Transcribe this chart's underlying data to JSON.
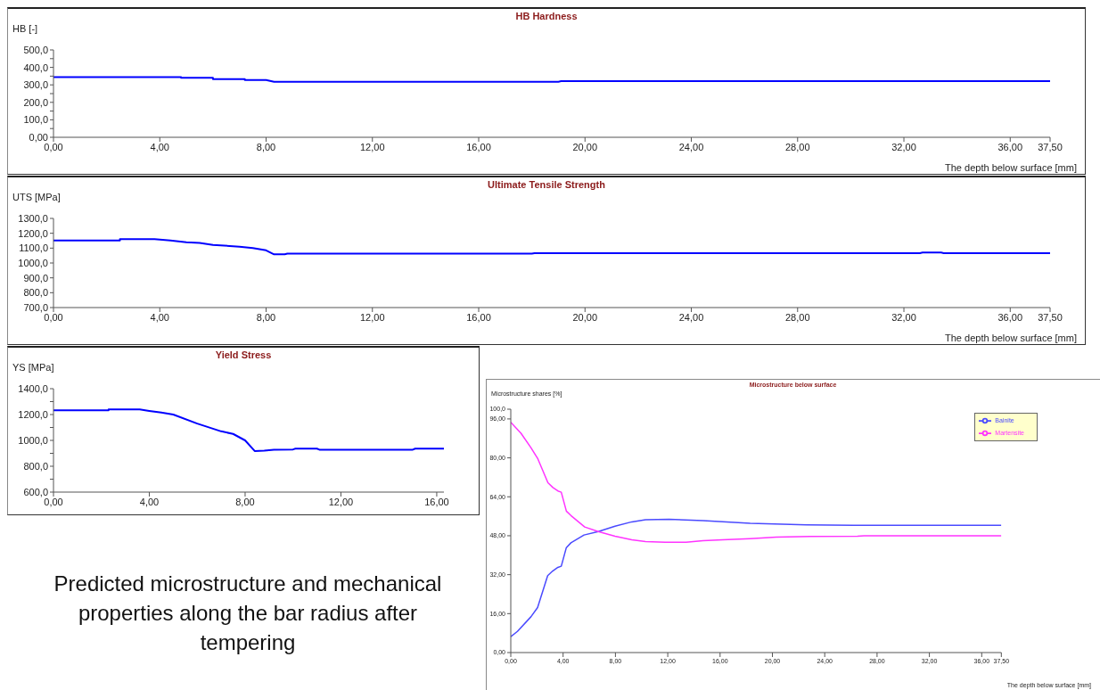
{
  "chart_data": [
    {
      "type": "line",
      "title": "HB Hardness",
      "ylabel": "HB [-]",
      "xlabel": "The depth below surface [mm]",
      "color": "#0000ff",
      "legend": false,
      "grid": false,
      "marker": "none",
      "line_style": "solid",
      "x": [
        0,
        4.8,
        4.8,
        6.0,
        6.0,
        7.2,
        7.2,
        8.0,
        8.3,
        19.0,
        19.1,
        37.5
      ],
      "values": [
        345,
        345,
        340,
        340,
        333,
        333,
        328,
        328,
        318,
        318,
        321,
        321
      ],
      "xlim": [
        0,
        37.5
      ],
      "xticks": [
        {
          "value": 0,
          "label": "0,00"
        },
        {
          "value": 4,
          "label": "4,00"
        },
        {
          "value": 8,
          "label": "8,00"
        },
        {
          "value": 12,
          "label": "12,00"
        },
        {
          "value": 16,
          "label": "16,00"
        },
        {
          "value": 20,
          "label": "20,00"
        },
        {
          "value": 24,
          "label": "24,00"
        },
        {
          "value": 28,
          "label": "28,00"
        },
        {
          "value": 32,
          "label": "32,00"
        },
        {
          "value": 36,
          "label": "36,00"
        },
        {
          "value": 37.5,
          "label": "37,50"
        }
      ],
      "ylim": [
        0,
        500
      ],
      "yticks": [
        {
          "value": 0,
          "label": "0,00"
        },
        {
          "value": 50,
          "label": null
        },
        {
          "value": 100,
          "label": "100,0"
        },
        {
          "value": 150,
          "label": null
        },
        {
          "value": 200,
          "label": "200,0"
        },
        {
          "value": 250,
          "label": null
        },
        {
          "value": 300,
          "label": "300,0"
        },
        {
          "value": 350,
          "label": null
        },
        {
          "value": 400,
          "label": "400,0"
        },
        {
          "value": 450,
          "label": null
        },
        {
          "value": 500,
          "label": "500,0"
        }
      ]
    },
    {
      "type": "line",
      "title": "Ultimate Tensile Strength",
      "ylabel": "UTS [MPa]",
      "xlabel": "The depth below surface [mm]",
      "color": "#0000ff",
      "legend": false,
      "grid": false,
      "marker": "none",
      "line_style": "solid",
      "x": [
        0,
        2.5,
        2.5,
        3.8,
        4.4,
        5.0,
        5.5,
        6.0,
        7.0,
        7.5,
        8.0,
        8.3,
        8.7,
        8.8,
        18.0,
        18.1,
        32.6,
        32.7,
        33.4,
        33.5,
        37.5
      ],
      "values": [
        1152,
        1152,
        1160,
        1160,
        1152,
        1140,
        1135,
        1122,
        1110,
        1100,
        1085,
        1058,
        1058,
        1063,
        1063,
        1066,
        1066,
        1070,
        1070,
        1066,
        1066
      ],
      "xlim": [
        0,
        37.5
      ],
      "xticks": [
        {
          "value": 0,
          "label": "0,00"
        },
        {
          "value": 4,
          "label": "4,00"
        },
        {
          "value": 8,
          "label": "8,00"
        },
        {
          "value": 12,
          "label": "12,00"
        },
        {
          "value": 16,
          "label": "16,00"
        },
        {
          "value": 20,
          "label": "20,00"
        },
        {
          "value": 24,
          "label": "24,00"
        },
        {
          "value": 28,
          "label": "28,00"
        },
        {
          "value": 32,
          "label": "32,00"
        },
        {
          "value": 36,
          "label": "36,00"
        },
        {
          "value": 37.5,
          "label": "37,50"
        }
      ],
      "ylim": [
        700,
        1300
      ],
      "yticks": [
        {
          "value": 700,
          "label": "700,0"
        },
        {
          "value": 800,
          "label": "800,0"
        },
        {
          "value": 900,
          "label": "900,0"
        },
        {
          "value": 1000,
          "label": "1000,0"
        },
        {
          "value": 1100,
          "label": "1100,0"
        },
        {
          "value": 1200,
          "label": "1200,0"
        },
        {
          "value": 1300,
          "label": "1300,0"
        }
      ]
    },
    {
      "type": "line",
      "title": "Yield Stress",
      "ylabel": "YS [MPa]",
      "color": "#0000ff",
      "legend": false,
      "grid": false,
      "marker": "none",
      "line_style": "solid",
      "annotations": [
        "Predicted microstructure and mechanical properties along the bar radius after tempering"
      ],
      "x": [
        0,
        2.3,
        2.3,
        3.6,
        4.0,
        4.5,
        5.0,
        6.0,
        7.0,
        7.5,
        8.0,
        8.4,
        8.8,
        9.2,
        10.0,
        10.1,
        11.0,
        11.1,
        15.0,
        15.1,
        16.3
      ],
      "values": [
        1232,
        1232,
        1240,
        1240,
        1228,
        1215,
        1200,
        1130,
        1070,
        1050,
        1000,
        918,
        920,
        928,
        930,
        936,
        936,
        928,
        928,
        936,
        936
      ],
      "xlim": [
        0,
        16.3
      ],
      "xticks": [
        {
          "value": 0,
          "label": "0,00"
        },
        {
          "value": 4,
          "label": "4,00"
        },
        {
          "value": 8,
          "label": "8,00"
        },
        {
          "value": 12,
          "label": "12,00"
        },
        {
          "value": 16,
          "label": "16,00"
        }
      ],
      "ylim": [
        600,
        1400
      ],
      "yticks": [
        {
          "value": 600,
          "label": "600,0"
        },
        {
          "value": 700,
          "label": null
        },
        {
          "value": 800,
          "label": "800,0"
        },
        {
          "value": 900,
          "label": null
        },
        {
          "value": 1000,
          "label": "1000,0"
        },
        {
          "value": 1100,
          "label": null
        },
        {
          "value": 1200,
          "label": "1200,0"
        },
        {
          "value": 1300,
          "label": null
        },
        {
          "value": 1400,
          "label": "1400,0"
        }
      ]
    },
    {
      "type": "line",
      "title": "Microstructure below surface",
      "ylabel": "Microstructure shares  [%]",
      "xlabel": "The depth below surface [mm]",
      "legend": "top right",
      "grid": false,
      "marker": "none",
      "line_style": "solid",
      "series": [
        {
          "name": "Bainite",
          "color": "#4a4aff",
          "x": [
            0,
            0.51,
            1.54,
            2.05,
            2.82,
            3.2,
            3.6,
            3.86,
            4.24,
            4.6,
            5.6,
            6.7,
            7.97,
            9.25,
            10.3,
            12.1,
            14.7,
            18.3,
            22.6,
            26.2,
            37.5
          ],
          "values": [
            6.5,
            8.7,
            14.7,
            18.5,
            31.6,
            33.5,
            35.0,
            35.5,
            43.0,
            45.1,
            48.3,
            49.7,
            51.9,
            53.7,
            54.6,
            54.8,
            54.2,
            53.1,
            52.5,
            52.3,
            52.3
          ]
        },
        {
          "name": "Martensite",
          "color": "#ff33ff",
          "x": [
            0,
            0.78,
            1.55,
            2.07,
            2.84,
            3.22,
            3.6,
            3.86,
            4.25,
            4.6,
            5.65,
            6.68,
            7.97,
            9.25,
            10.3,
            11.8,
            13.4,
            14.7,
            16.2,
            18.3,
            20.3,
            22.9,
            26.5,
            27.0,
            37.5
          ],
          "values": [
            94.6,
            90.1,
            84.1,
            79.6,
            69.8,
            67.8,
            66.4,
            65.9,
            58.1,
            56.3,
            51.6,
            49.7,
            47.8,
            46.3,
            45.6,
            45.3,
            45.3,
            46.0,
            46.3,
            46.8,
            47.4,
            47.7,
            47.8,
            48.0,
            48.0
          ]
        }
      ],
      "xlim": [
        0,
        37.5
      ],
      "xticks": [
        {
          "value": 0,
          "label": "0,00"
        },
        {
          "value": 4,
          "label": "4,00"
        },
        {
          "value": 8,
          "label": "8,00"
        },
        {
          "value": 12,
          "label": "12,00"
        },
        {
          "value": 16,
          "label": "16,00"
        },
        {
          "value": 20,
          "label": "20,00"
        },
        {
          "value": 24,
          "label": "24,00"
        },
        {
          "value": 28,
          "label": "28,00"
        },
        {
          "value": 32,
          "label": "32,00"
        },
        {
          "value": 36,
          "label": "36,00"
        },
        {
          "value": 37.5,
          "label": "37,50"
        }
      ],
      "ylim": [
        0,
        100
      ],
      "yticks": [
        {
          "value": 0,
          "label": "0,00"
        },
        {
          "value": 16,
          "label": "16,00"
        },
        {
          "value": 32,
          "label": "32,00"
        },
        {
          "value": 48,
          "label": "48,00"
        },
        {
          "value": 64,
          "label": "64,00"
        },
        {
          "value": 80,
          "label": "80,00"
        },
        {
          "value": 96,
          "label": "96,00"
        },
        {
          "value": 100,
          "label": "100,0"
        }
      ]
    }
  ]
}
